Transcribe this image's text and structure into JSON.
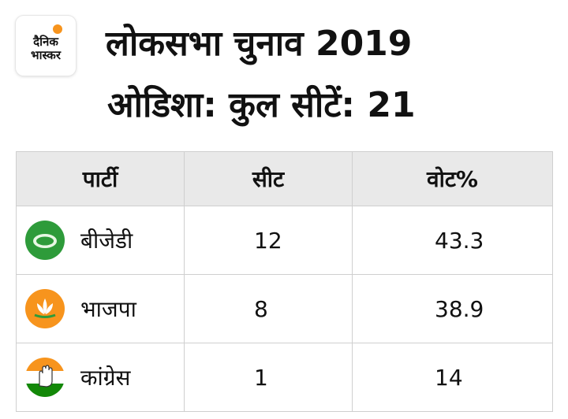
{
  "logo": {
    "line1": "दैनिक",
    "line2": "भास्कर"
  },
  "title": "लोकसभा चुनाव 2019",
  "subtitle": "ओडिशा: कुल सीटें: 21",
  "table": {
    "headers": [
      "पार्टी",
      "सीट",
      "वोट%"
    ],
    "rows": [
      {
        "party": "बीजेडी",
        "seats": "12",
        "vote": "43.3",
        "symbol": "bjd-conch-icon",
        "color": "#2e9b3a"
      },
      {
        "party": "भाजपा",
        "seats": "8",
        "vote": "38.9",
        "symbol": "bjp-lotus-icon",
        "color": "#f7941d"
      },
      {
        "party": "कांग्रेस",
        "seats": "1",
        "vote": "14",
        "symbol": "congress-hand-icon",
        "color": "#138808"
      }
    ]
  }
}
